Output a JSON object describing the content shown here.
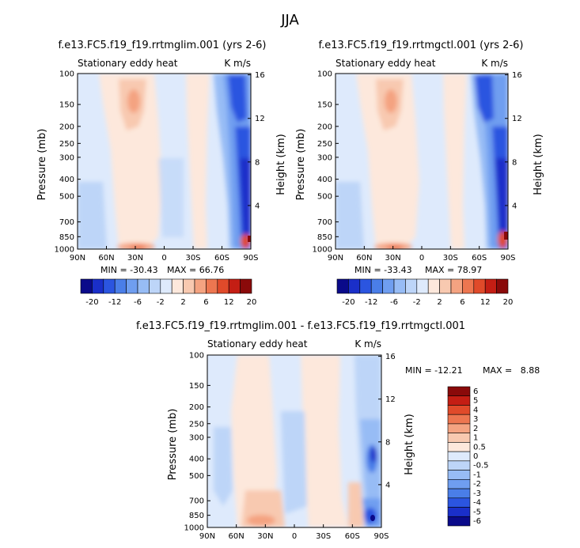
{
  "page_title": "JJA",
  "chart_data": [
    {
      "type": "heatmap",
      "title": "f.e13.FC5.f19_f19.rrtmglim.001 (yrs 2-6)",
      "left_label": "Stationary eddy heat",
      "units": "K m/s",
      "xlabel": "",
      "ylabel": "Pressure (mb)",
      "right_axis_label": "Height (km)",
      "x_ticks": [
        "90N",
        "60N",
        "30N",
        "0",
        "30S",
        "60S",
        "90S"
      ],
      "y_ticks": [
        "100",
        "150",
        "200",
        "250",
        "300",
        "400",
        "500",
        "700",
        "850",
        "1000"
      ],
      "right_ticks": [
        "16",
        "12",
        "8",
        "4"
      ],
      "xlim": [
        90,
        -90
      ],
      "ylim": [
        1000,
        100
      ],
      "min_label": "MIN = -30.43",
      "max_label": "MAX = 66.76",
      "colorbar_levels": [
        "-20",
        "-12",
        "-6",
        "-2",
        "2",
        "6",
        "12",
        "20"
      ]
    },
    {
      "type": "heatmap",
      "title": "f.e13.FC5.f19_f19.rrtmgctl.001 (yrs 2-6)",
      "left_label": "Stationary eddy heat",
      "units": "K m/s",
      "xlabel": "",
      "ylabel": "Pressure (mb)",
      "right_axis_label": "Height (km)",
      "x_ticks": [
        "90N",
        "60N",
        "30N",
        "0",
        "30S",
        "60S",
        "90S"
      ],
      "y_ticks": [
        "100",
        "150",
        "200",
        "250",
        "300",
        "400",
        "500",
        "700",
        "850",
        "1000"
      ],
      "right_ticks": [
        "16",
        "12",
        "8",
        "4"
      ],
      "xlim": [
        90,
        -90
      ],
      "ylim": [
        1000,
        100
      ],
      "min_label": "MIN = -33.43",
      "max_label": "MAX = 78.97",
      "colorbar_levels": [
        "-20",
        "-12",
        "-6",
        "-2",
        "2",
        "6",
        "12",
        "20"
      ]
    },
    {
      "type": "heatmap",
      "title": "f.e13.FC5.f19_f19.rrtmglim.001 - f.e13.FC5.f19_f19.rrtmgctl.001",
      "left_label": "Stationary eddy heat",
      "units": "K m/s",
      "xlabel": "",
      "ylabel": "Pressure (mb)",
      "right_axis_label": "Height (km)",
      "x_ticks": [
        "90N",
        "60N",
        "30N",
        "0",
        "30S",
        "60S",
        "90S"
      ],
      "y_ticks": [
        "100",
        "150",
        "200",
        "250",
        "300",
        "400",
        "500",
        "700",
        "850",
        "1000"
      ],
      "right_ticks": [
        "16",
        "12",
        "8",
        "4"
      ],
      "xlim": [
        90,
        -90
      ],
      "ylim": [
        1000,
        100
      ],
      "min_label": "MIN = -12.21",
      "max_label": "MAX =   8.88",
      "colorbar_levels": [
        "6",
        "5",
        "4",
        "3",
        "2",
        "1",
        "0.5",
        "0",
        "-0.5",
        "-1",
        "-2",
        "-3",
        "-4",
        "-5",
        "-6"
      ]
    }
  ],
  "colorbar_colors": [
    "#0a0a8a",
    "#1a2fc9",
    "#2b55e0",
    "#4a7ee8",
    "#6f9ef0",
    "#97bcf5",
    "#bdd5f8",
    "#deeafc",
    "#fde8dc",
    "#f8c9b0",
    "#f4a381",
    "#ed7650",
    "#e04a2a",
    "#c41e14",
    "#8a0a0a"
  ],
  "diff_colorbar_colors": [
    "#8a0a0a",
    "#c41e14",
    "#e04a2a",
    "#ed7650",
    "#f4a381",
    "#f8c9b0",
    "#fde8dc",
    "#deeafc",
    "#bdd5f8",
    "#97bcf5",
    "#6f9ef0",
    "#4a7ee8",
    "#2b55e0",
    "#1a2fc9",
    "#0a0a8a"
  ]
}
